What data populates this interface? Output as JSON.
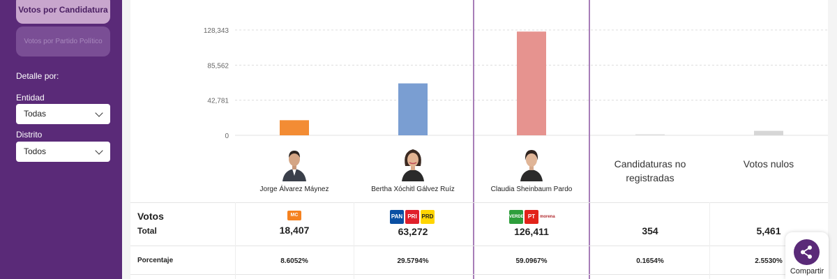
{
  "sidebar": {
    "candidacy_button": "Votos por Candidatura",
    "party_button": "Votos por Partido Político",
    "detail_label": "Detalle por:",
    "entity_label": "Entidad",
    "entity_value": "Todas",
    "district_label": "Distrito",
    "district_value": "Todos"
  },
  "candidates": [
    {
      "name": "Jorge Álvarez Máynez",
      "votes": "18,407",
      "pct": "8.6052%"
    },
    {
      "name": "Bertha Xóchitl Gálvez Ruíz",
      "votes": "63,272",
      "pct": "29.5794%"
    },
    {
      "name": "Claudia Sheinbaum Pardo",
      "votes": "126,411",
      "pct": "59.0967%"
    }
  ],
  "others": [
    {
      "name_line1": "Candidaturas no",
      "name_line2": "registradas",
      "votes": "354",
      "pct": "0.1654%"
    },
    {
      "name_line1": "Votos nulos",
      "name_line2": "",
      "votes": "5,461",
      "pct": "2.5530%"
    }
  ],
  "table": {
    "votes_label": "Votos",
    "total_label": "Total",
    "pct_label": "Porcentaje"
  },
  "party_logos": {
    "mc": [
      "MC"
    ],
    "alliance": [
      "PAN",
      "PRI",
      "PRD"
    ],
    "coalition": [
      "VERDE",
      "PT",
      "morena"
    ]
  },
  "share": {
    "label": "Compartir"
  },
  "chart_data": {
    "type": "bar",
    "categories": [
      "Jorge Álvarez Máynez",
      "Bertha Xóchitl Gálvez Ruíz",
      "Claudia Sheinbaum Pardo",
      "Candidaturas no registradas",
      "Votos nulos"
    ],
    "values": [
      18407,
      63272,
      126411,
      354,
      5461
    ],
    "colors": [
      "#f38c34",
      "#7a9ed2",
      "#e6938f",
      "#dddddd",
      "#d6d6d6"
    ],
    "yticks": [
      "0",
      "42,781",
      "85,562",
      "128,343"
    ],
    "ytick_values": [
      0,
      42781,
      85562,
      128343
    ],
    "ylim": [
      0,
      128343
    ],
    "grid": true
  }
}
